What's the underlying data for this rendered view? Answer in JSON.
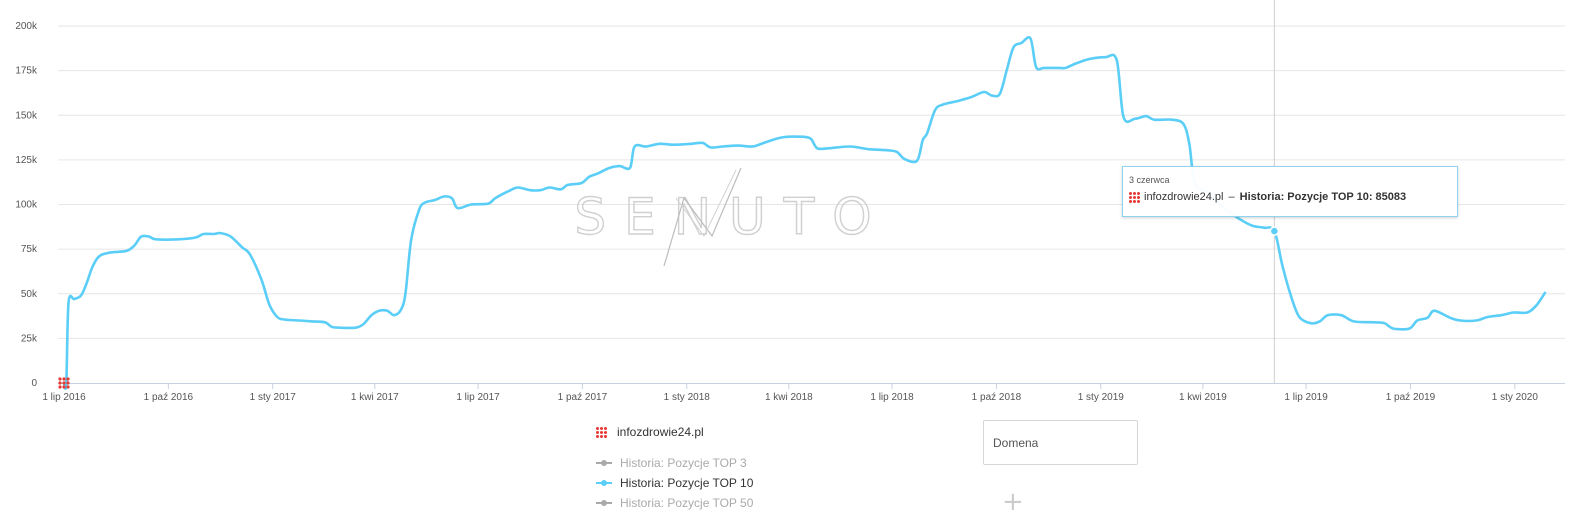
{
  "chart_data": {
    "type": "line",
    "title": "",
    "xlabel": "",
    "ylabel": "",
    "ylim": [
      0,
      200000
    ],
    "y_ticks": [
      {
        "value": 0,
        "label": "0"
      },
      {
        "value": 25000,
        "label": "25k"
      },
      {
        "value": 50000,
        "label": "50k"
      },
      {
        "value": 75000,
        "label": "75k"
      },
      {
        "value": 100000,
        "label": "100k"
      },
      {
        "value": 125000,
        "label": "125k"
      },
      {
        "value": 150000,
        "label": "150k"
      },
      {
        "value": 175000,
        "label": "175k"
      },
      {
        "value": 200000,
        "label": "200k"
      }
    ],
    "x_range": [
      "2016-07-01",
      "2020-02-01"
    ],
    "x_ticks": [
      {
        "date": "2016-07-01",
        "label": "1 lip 2016"
      },
      {
        "date": "2016-10-01",
        "label": "1 paź 2016"
      },
      {
        "date": "2017-01-01",
        "label": "1 sty 2017"
      },
      {
        "date": "2017-04-01",
        "label": "1 kwi 2017"
      },
      {
        "date": "2017-07-01",
        "label": "1 lip 2017"
      },
      {
        "date": "2017-10-01",
        "label": "1 paź 2017"
      },
      {
        "date": "2018-01-01",
        "label": "1 sty 2018"
      },
      {
        "date": "2018-04-01",
        "label": "1 kwi 2018"
      },
      {
        "date": "2018-07-01",
        "label": "1 lip 2018"
      },
      {
        "date": "2018-10-01",
        "label": "1 paź 2018"
      },
      {
        "date": "2019-01-01",
        "label": "1 sty 2019"
      },
      {
        "date": "2019-04-01",
        "label": "1 kwi 2019"
      },
      {
        "date": "2019-07-01",
        "label": "1 lip 2019"
      },
      {
        "date": "2019-10-01",
        "label": "1 paź 2019"
      },
      {
        "date": "2020-01-01",
        "label": "1 sty 2020"
      }
    ],
    "grid": true,
    "watermark": "SENUTO",
    "series": [
      {
        "name": "Historia: Pozycje TOP 10",
        "color": "#5bcef7",
        "points": [
          [
            "2016-07-01",
            0
          ],
          [
            "2016-07-03",
            0
          ],
          [
            "2016-07-05",
            45000
          ],
          [
            "2016-07-10",
            47000
          ],
          [
            "2016-07-16",
            49000
          ],
          [
            "2016-07-21",
            56000
          ],
          [
            "2016-07-26",
            65000
          ],
          [
            "2016-08-01",
            71000
          ],
          [
            "2016-08-10",
            73000
          ],
          [
            "2016-08-25",
            74000
          ],
          [
            "2016-09-01",
            77000
          ],
          [
            "2016-09-07",
            82000
          ],
          [
            "2016-09-14",
            82000
          ],
          [
            "2016-09-20",
            80500
          ],
          [
            "2016-10-10",
            80500
          ],
          [
            "2016-10-25",
            81500
          ],
          [
            "2016-11-01",
            83500
          ],
          [
            "2016-11-10",
            83500
          ],
          [
            "2016-11-16",
            84000
          ],
          [
            "2016-11-25",
            82000
          ],
          [
            "2016-12-05",
            76000
          ],
          [
            "2016-12-12",
            72000
          ],
          [
            "2016-12-22",
            58000
          ],
          [
            "2016-12-29",
            44000
          ],
          [
            "2017-01-05",
            37000
          ],
          [
            "2017-01-12",
            35500
          ],
          [
            "2017-01-25",
            35000
          ],
          [
            "2017-02-05",
            34500
          ],
          [
            "2017-02-16",
            34000
          ],
          [
            "2017-02-22",
            31500
          ],
          [
            "2017-03-01",
            31000
          ],
          [
            "2017-03-15",
            31000
          ],
          [
            "2017-03-22",
            33000
          ],
          [
            "2017-03-29",
            38000
          ],
          [
            "2017-04-05",
            40500
          ],
          [
            "2017-04-12",
            40500
          ],
          [
            "2017-04-18",
            38000
          ],
          [
            "2017-04-24",
            41000
          ],
          [
            "2017-04-28",
            50000
          ],
          [
            "2017-05-03",
            80000
          ],
          [
            "2017-05-10",
            97000
          ],
          [
            "2017-05-15",
            101000
          ],
          [
            "2017-05-24",
            102500
          ],
          [
            "2017-06-01",
            104500
          ],
          [
            "2017-06-08",
            103500
          ],
          [
            "2017-06-13",
            98000
          ],
          [
            "2017-06-25",
            100000
          ],
          [
            "2017-07-10",
            100500
          ],
          [
            "2017-07-16",
            103500
          ],
          [
            "2017-07-28",
            107500
          ],
          [
            "2017-08-05",
            109500
          ],
          [
            "2017-08-16",
            108000
          ],
          [
            "2017-08-25",
            108000
          ],
          [
            "2017-09-02",
            109500
          ],
          [
            "2017-09-12",
            108500
          ],
          [
            "2017-09-18",
            111000
          ],
          [
            "2017-09-30",
            112000
          ],
          [
            "2017-10-07",
            115500
          ],
          [
            "2017-10-15",
            117500
          ],
          [
            "2017-10-25",
            120500
          ],
          [
            "2017-11-03",
            121500
          ],
          [
            "2017-11-12",
            120500
          ],
          [
            "2017-11-16",
            132500
          ],
          [
            "2017-11-26",
            132500
          ],
          [
            "2017-12-08",
            134000
          ],
          [
            "2017-12-20",
            133500
          ],
          [
            "2018-01-05",
            134000
          ],
          [
            "2018-01-15",
            134500
          ],
          [
            "2018-01-22",
            132000
          ],
          [
            "2018-02-02",
            132500
          ],
          [
            "2018-02-15",
            133000
          ],
          [
            "2018-02-28",
            132500
          ],
          [
            "2018-03-10",
            134500
          ],
          [
            "2018-03-25",
            137500
          ],
          [
            "2018-04-10",
            138000
          ],
          [
            "2018-04-20",
            137000
          ],
          [
            "2018-04-26",
            131500
          ],
          [
            "2018-05-06",
            131500
          ],
          [
            "2018-05-25",
            132500
          ],
          [
            "2018-06-10",
            131000
          ],
          [
            "2018-06-25",
            130500
          ],
          [
            "2018-07-05",
            129500
          ],
          [
            "2018-07-12",
            125500
          ],
          [
            "2018-07-23",
            124500
          ],
          [
            "2018-07-28",
            136000
          ],
          [
            "2018-08-01",
            140000
          ],
          [
            "2018-08-08",
            153000
          ],
          [
            "2018-08-15",
            156000
          ],
          [
            "2018-08-28",
            158000
          ],
          [
            "2018-09-08",
            160000
          ],
          [
            "2018-09-20",
            163000
          ],
          [
            "2018-09-27",
            161000
          ],
          [
            "2018-10-04",
            162000
          ],
          [
            "2018-10-10",
            175000
          ],
          [
            "2018-10-16",
            188000
          ],
          [
            "2018-10-23",
            190500
          ],
          [
            "2018-10-31",
            193000
          ],
          [
            "2018-11-05",
            177000
          ],
          [
            "2018-11-12",
            176500
          ],
          [
            "2018-11-25",
            176500
          ],
          [
            "2018-12-01",
            176500
          ],
          [
            "2018-12-10",
            179000
          ],
          [
            "2018-12-22",
            181500
          ],
          [
            "2019-01-05",
            182500
          ],
          [
            "2019-01-15",
            181000
          ],
          [
            "2019-01-21",
            149000
          ],
          [
            "2019-01-31",
            148000
          ],
          [
            "2019-02-10",
            149500
          ],
          [
            "2019-02-17",
            147500
          ],
          [
            "2019-03-05",
            147500
          ],
          [
            "2019-03-15",
            145000
          ],
          [
            "2019-03-20",
            134000
          ],
          [
            "2019-03-25",
            112000
          ],
          [
            "2019-04-05",
            107000
          ],
          [
            "2019-04-20",
            98000
          ],
          [
            "2019-05-03",
            92000
          ],
          [
            "2019-05-15",
            88000
          ],
          [
            "2019-05-25",
            87000
          ],
          [
            "2019-06-03",
            85083
          ],
          [
            "2019-06-10",
            66000
          ],
          [
            "2019-06-18",
            48000
          ],
          [
            "2019-06-25",
            37000
          ],
          [
            "2019-07-05",
            33500
          ],
          [
            "2019-07-13",
            34500
          ],
          [
            "2019-07-20",
            38000
          ],
          [
            "2019-08-01",
            38000
          ],
          [
            "2019-08-12",
            34500
          ],
          [
            "2019-08-30",
            34000
          ],
          [
            "2019-09-08",
            33500
          ],
          [
            "2019-09-16",
            30500
          ],
          [
            "2019-09-30",
            30500
          ],
          [
            "2019-10-07",
            35000
          ],
          [
            "2019-10-16",
            36500
          ],
          [
            "2019-10-22",
            40500
          ],
          [
            "2019-11-05",
            36500
          ],
          [
            "2019-11-14",
            35000
          ],
          [
            "2019-11-28",
            35000
          ],
          [
            "2019-12-08",
            37000
          ],
          [
            "2019-12-20",
            38000
          ],
          [
            "2019-12-31",
            39500
          ],
          [
            "2020-01-12",
            39500
          ],
          [
            "2020-01-20",
            43500
          ],
          [
            "2020-01-28",
            51000
          ]
        ]
      }
    ]
  },
  "tooltip": {
    "date": "3 czerwca",
    "domain": "infozdrowie24.pl",
    "separator": "–",
    "text": "Historia: Pozycje TOP 10: 85083",
    "x": "2019-06-03",
    "value": 85083
  },
  "legend": {
    "domain": "infozdrowie24.pl",
    "items": [
      {
        "label": "Historia: Pozycje TOP 3",
        "color": "#aaaaaa",
        "text_color": "#aaaaaa"
      },
      {
        "label": "Historia: Pozycje TOP 10",
        "color": "#5bcef7",
        "text_color": "#333333"
      },
      {
        "label": "Historia: Pozycje TOP 50",
        "color": "#aaaaaa",
        "text_color": "#aaaaaa"
      }
    ]
  },
  "domain_input": {
    "placeholder": "Domena",
    "value": ""
  },
  "add_button": {
    "label": "+"
  }
}
